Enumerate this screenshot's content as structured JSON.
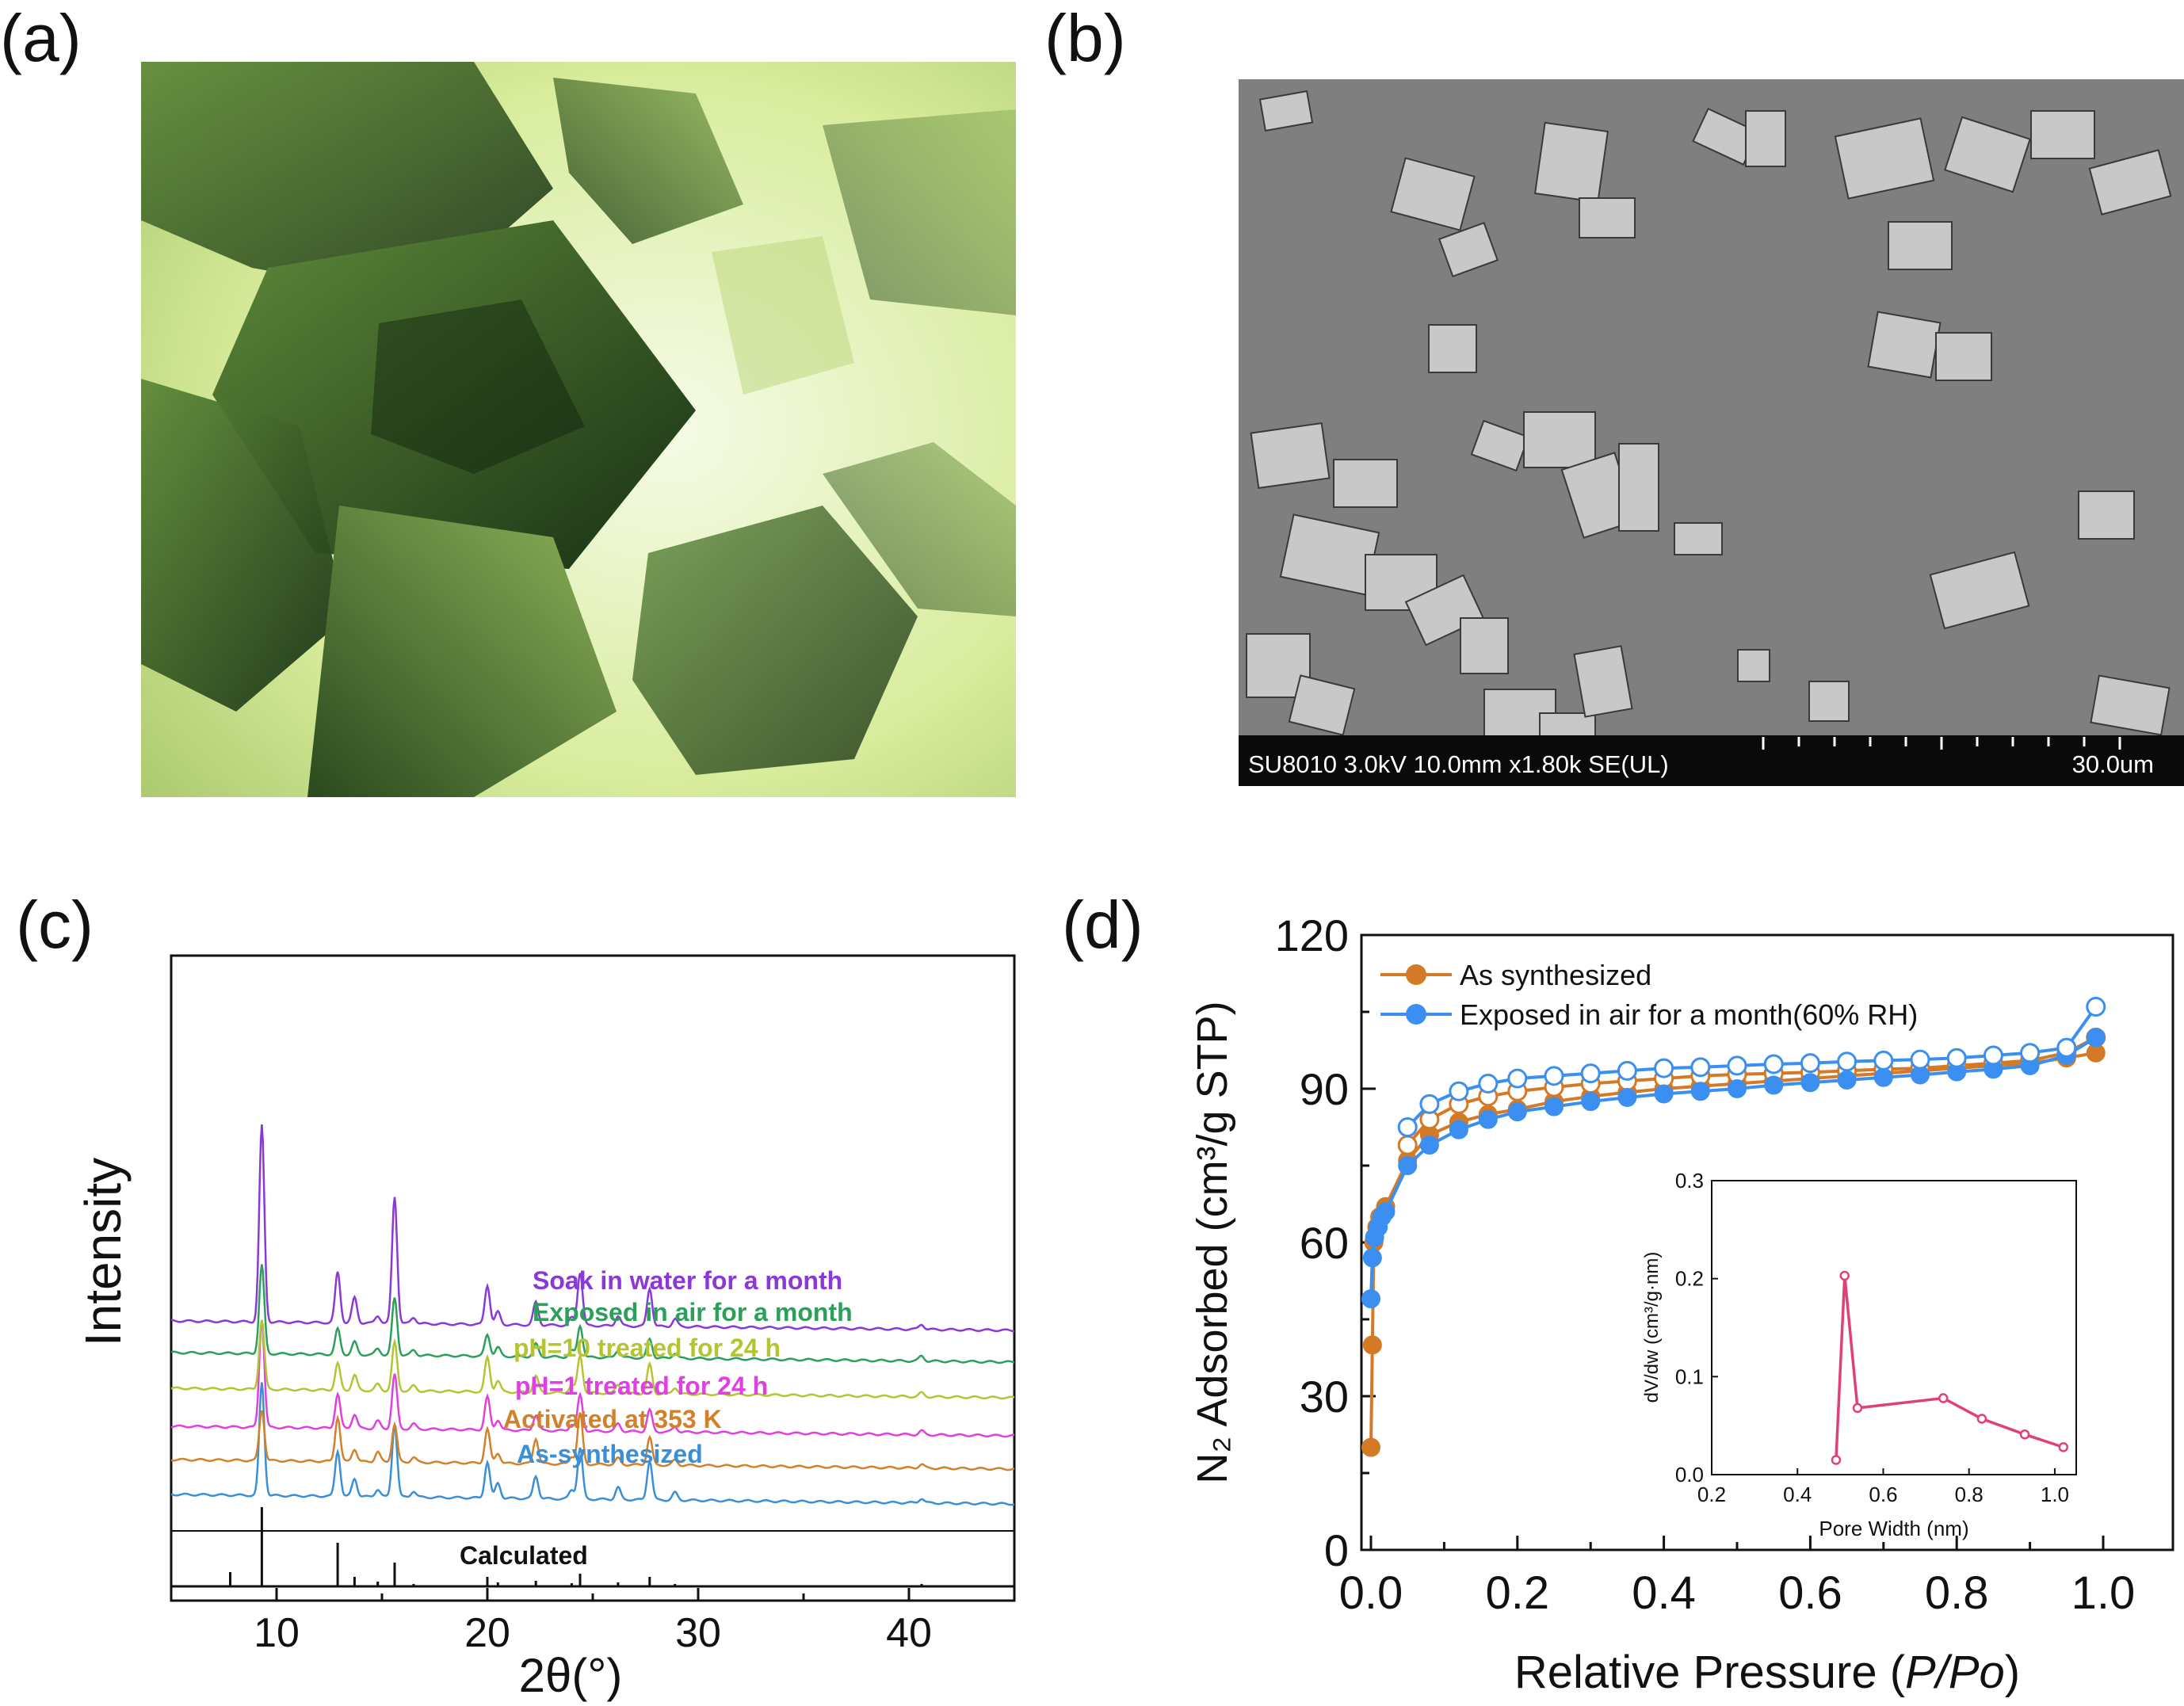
{
  "figure": {
    "panel_labels": [
      "(a)",
      "(b)",
      "(c)",
      "(d)"
    ],
    "sem": {
      "info": "SU8010 3.0kV 10.0mm x1.80k SE(UL)",
      "scale_label": "30.0um"
    }
  },
  "chart_data": [
    {
      "type": "line",
      "panel": "(c)",
      "xlabel": "2θ(°)",
      "ylabel": "Intensity",
      "xlim": [
        5,
        45
      ],
      "xticks": [
        10,
        20,
        30,
        40
      ],
      "peak_positions": [
        7.8,
        9.3,
        12.9,
        13.7,
        14.8,
        15.6,
        16.5,
        20.0,
        20.5,
        22.3,
        24.0,
        24.4,
        26.2,
        27.7,
        28.9,
        40.6
      ],
      "series": [
        {
          "name": "Calculated",
          "color": "#111111",
          "heights": [
            0.18,
            1.0,
            0.55,
            0.12,
            0.06,
            0.3,
            0.03,
            0.12,
            0.05,
            0.07,
            0.04,
            0.16,
            0.05,
            0.12,
            0.03,
            0.03
          ]
        },
        {
          "name": "As-synthesized",
          "color": "#3a8fd6",
          "heights": [
            0.0,
            0.75,
            0.3,
            0.12,
            0.05,
            0.48,
            0.04,
            0.24,
            0.1,
            0.15,
            0.06,
            0.34,
            0.08,
            0.26,
            0.05,
            0.03
          ]
        },
        {
          "name": "Activated at 353 K",
          "color": "#d2812a",
          "heights": [
            0.0,
            0.4,
            0.35,
            0.1,
            0.08,
            0.3,
            0.04,
            0.27,
            0.08,
            0.2,
            0.06,
            0.4,
            0.05,
            0.22,
            0.04,
            0.03
          ]
        },
        {
          "name": "pH=1 treated for 24 h",
          "color": "#e040e0",
          "heights": [
            0.0,
            0.85,
            0.27,
            0.11,
            0.06,
            0.43,
            0.04,
            0.26,
            0.08,
            0.12,
            0.05,
            0.28,
            0.06,
            0.17,
            0.04,
            0.03
          ]
        },
        {
          "name": "pH=10 treated for 24 h",
          "color": "#b5c532",
          "heights": [
            0.0,
            0.55,
            0.21,
            0.12,
            0.05,
            0.38,
            0.04,
            0.27,
            0.09,
            0.13,
            0.06,
            0.29,
            0.07,
            0.23,
            0.05,
            0.03
          ]
        },
        {
          "name": "Exposed in air for a month",
          "color": "#2ca05a",
          "heights": [
            0.0,
            0.7,
            0.2,
            0.1,
            0.05,
            0.45,
            0.04,
            0.17,
            0.07,
            0.1,
            0.05,
            0.25,
            0.06,
            0.15,
            0.04,
            0.04
          ]
        },
        {
          "name": "Soak in water for a month",
          "color": "#8b38d8",
          "heights": [
            0.0,
            1.55,
            0.4,
            0.2,
            0.06,
            1.0,
            0.05,
            0.31,
            0.1,
            0.18,
            0.06,
            0.42,
            0.08,
            0.3,
            0.06,
            0.04
          ]
        }
      ]
    },
    {
      "type": "scatter",
      "panel": "(d)",
      "xlabel_main": "Relative Pressure (",
      "xlabel_italic": "P/Po",
      "xlabel_end": ")",
      "ylabel": "N₂ Adsorbed (cm³/g STP)",
      "xlim": [
        0,
        1.1
      ],
      "ylim": [
        0,
        120
      ],
      "xticks": [
        "0.0",
        "0.2",
        "0.4",
        "0.6",
        "0.8",
        "1.0"
      ],
      "yticks": [
        "0",
        "30",
        "60",
        "90",
        "120"
      ],
      "legend_placement": "top-left",
      "series": [
        {
          "name": "As synthesized",
          "color": "#d47a26",
          "adsorption": [
            [
              0.0,
              20
            ],
            [
              0.002,
              40
            ],
            [
              0.004,
              60
            ],
            [
              0.008,
              63
            ],
            [
              0.012,
              65
            ],
            [
              0.02,
              67
            ],
            [
              0.05,
              76
            ],
            [
              0.08,
              81
            ],
            [
              0.12,
              83.5
            ],
            [
              0.16,
              85
            ],
            [
              0.2,
              86
            ],
            [
              0.25,
              87.5
            ],
            [
              0.3,
              88.5
            ],
            [
              0.35,
              89.3
            ],
            [
              0.4,
              90
            ],
            [
              0.45,
              90.5
            ],
            [
              0.5,
              91
            ],
            [
              0.55,
              91.5
            ],
            [
              0.6,
              92
            ],
            [
              0.65,
              92.5
            ],
            [
              0.7,
              93
            ],
            [
              0.75,
              93.5
            ],
            [
              0.8,
              94
            ],
            [
              0.85,
              94.5
            ],
            [
              0.9,
              95
            ],
            [
              0.95,
              96
            ],
            [
              0.99,
              97
            ]
          ],
          "desorption": [
            [
              0.99,
              100
            ],
            [
              0.95,
              97
            ],
            [
              0.9,
              95.5
            ],
            [
              0.85,
              95
            ],
            [
              0.8,
              94.5
            ],
            [
              0.75,
              94
            ],
            [
              0.7,
              93.8
            ],
            [
              0.65,
              93.5
            ],
            [
              0.6,
              93.2
            ],
            [
              0.55,
              93
            ],
            [
              0.5,
              92.8
            ],
            [
              0.45,
              92.5
            ],
            [
              0.4,
              92
            ],
            [
              0.35,
              91.5
            ],
            [
              0.3,
              91
            ],
            [
              0.25,
              90.3
            ],
            [
              0.2,
              89.5
            ],
            [
              0.16,
              88.5
            ],
            [
              0.12,
              87
            ],
            [
              0.08,
              84
            ],
            [
              0.05,
              79
            ]
          ]
        },
        {
          "name": "Exposed in air for a month(60% RH)",
          "color": "#3a8ff0",
          "adsorption": [
            [
              0.0,
              49
            ],
            [
              0.002,
              57
            ],
            [
              0.005,
              61
            ],
            [
              0.01,
              63
            ],
            [
              0.015,
              65
            ],
            [
              0.02,
              66
            ],
            [
              0.05,
              75
            ],
            [
              0.08,
              79
            ],
            [
              0.12,
              82
            ],
            [
              0.16,
              84
            ],
            [
              0.2,
              85.5
            ],
            [
              0.25,
              86.5
            ],
            [
              0.3,
              87.5
            ],
            [
              0.35,
              88.3
            ],
            [
              0.4,
              89
            ],
            [
              0.45,
              89.5
            ],
            [
              0.5,
              90
            ],
            [
              0.55,
              90.7
            ],
            [
              0.6,
              91.2
            ],
            [
              0.65,
              91.7
            ],
            [
              0.7,
              92.2
            ],
            [
              0.75,
              92.7
            ],
            [
              0.8,
              93.3
            ],
            [
              0.85,
              93.8
            ],
            [
              0.9,
              94.5
            ],
            [
              0.95,
              96.5
            ],
            [
              0.99,
              100
            ]
          ],
          "desorption": [
            [
              0.99,
              106
            ],
            [
              0.95,
              98
            ],
            [
              0.9,
              97
            ],
            [
              0.85,
              96.5
            ],
            [
              0.8,
              96
            ],
            [
              0.75,
              95.7
            ],
            [
              0.7,
              95.5
            ],
            [
              0.65,
              95.3
            ],
            [
              0.6,
              95
            ],
            [
              0.55,
              94.8
            ],
            [
              0.5,
              94.5
            ],
            [
              0.45,
              94.2
            ],
            [
              0.4,
              94
            ],
            [
              0.35,
              93.5
            ],
            [
              0.3,
              93
            ],
            [
              0.25,
              92.5
            ],
            [
              0.2,
              92
            ],
            [
              0.16,
              91
            ],
            [
              0.12,
              89.5
            ],
            [
              0.08,
              87
            ],
            [
              0.05,
              82.5
            ]
          ]
        }
      ],
      "inset": {
        "type": "line",
        "xlabel": "Pore Width (nm)",
        "ylabel": "dV/dw (cm³/g·nm)",
        "xlim": [
          0.2,
          1.05
        ],
        "ylim": [
          0,
          0.3
        ],
        "xticks": [
          "0.2",
          "0.4",
          "0.6",
          "0.8",
          "1.0"
        ],
        "yticks": [
          "0.0",
          "0.1",
          "0.2",
          "0.3"
        ],
        "color": "#e0407a",
        "points": [
          [
            0.49,
            0.015
          ],
          [
            0.51,
            0.203
          ],
          [
            0.54,
            0.068
          ],
          [
            0.74,
            0.078
          ],
          [
            0.83,
            0.057
          ],
          [
            0.93,
            0.041
          ],
          [
            1.02,
            0.028
          ]
        ]
      }
    }
  ]
}
